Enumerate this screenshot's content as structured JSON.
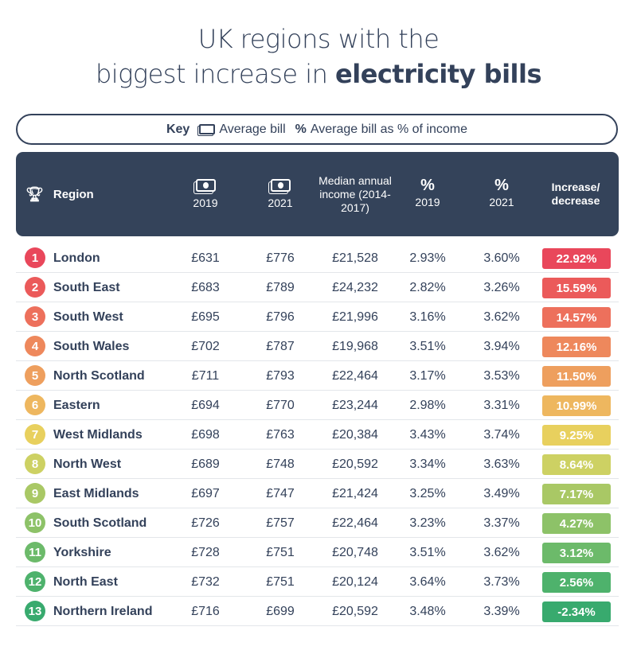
{
  "title": {
    "line1": "UK regions with the",
    "line2_pre": "biggest increase in ",
    "line2_bold": "electricity bills"
  },
  "key": {
    "label": "Key",
    "bill": "Average bill",
    "pct": "Average bill as % of income",
    "bill_icon": "banknote-icon",
    "pct_icon": "percent-icon"
  },
  "header": {
    "region": "Region",
    "bill2019": "2019",
    "bill2021": "2021",
    "income": "Median annual income (2014-2017)",
    "pct2019": "2019",
    "pct2021": "2021",
    "change": "Increase/ decrease",
    "pct_symbol": "%",
    "trophy_icon": "trophy-icon"
  },
  "chart_data": {
    "type": "table",
    "columns": [
      "Rank",
      "Region",
      "Average bill 2019",
      "Average bill 2021",
      "Median annual income (2014-2017)",
      "% 2019",
      "% 2021",
      "Increase/decrease"
    ],
    "rows": [
      {
        "rank": "1",
        "region": "London",
        "b19": "£631",
        "b21": "£776",
        "income": "£21,528",
        "p19": "2.93%",
        "p21": "3.60%",
        "change": "22.92%",
        "color": "#e9475b"
      },
      {
        "rank": "2",
        "region": "South East",
        "b19": "£683",
        "b21": "£789",
        "income": "£24,232",
        "p19": "2.82%",
        "p21": "3.26%",
        "change": "15.59%",
        "color": "#eb5a5a"
      },
      {
        "rank": "3",
        "region": "South West",
        "b19": "£695",
        "b21": "£796",
        "income": "£21,996",
        "p19": "3.16%",
        "p21": "3.62%",
        "change": "14.57%",
        "color": "#ed705c"
      },
      {
        "rank": "4",
        "region": "South Wales",
        "b19": "£702",
        "b21": "£787",
        "income": "£19,968",
        "p19": "3.51%",
        "p21": "3.94%",
        "change": "12.16%",
        "color": "#ee885c"
      },
      {
        "rank": "5",
        "region": "North Scotland",
        "b19": "£711",
        "b21": "£793",
        "income": "£22,464",
        "p19": "3.17%",
        "p21": "3.53%",
        "change": "11.50%",
        "color": "#ee9f5e"
      },
      {
        "rank": "6",
        "region": "Eastern",
        "b19": "£694",
        "b21": "£770",
        "income": "£23,244",
        "p19": "2.98%",
        "p21": "3.31%",
        "change": "10.99%",
        "color": "#eeb75f"
      },
      {
        "rank": "7",
        "region": "West Midlands",
        "b19": "£698",
        "b21": "£763",
        "income": "£20,384",
        "p19": "3.43%",
        "p21": "3.74%",
        "change": "9.25%",
        "color": "#e8d05e"
      },
      {
        "rank": "8",
        "region": "North West",
        "b19": "£689",
        "b21": "£748",
        "income": "£20,592",
        "p19": "3.34%",
        "p21": "3.63%",
        "change": "8.64%",
        "color": "#cdd163"
      },
      {
        "rank": "9",
        "region": "East Midlands",
        "b19": "£697",
        "b21": "£747",
        "income": "£21,424",
        "p19": "3.25%",
        "p21": "3.49%",
        "change": "7.17%",
        "color": "#a9c865"
      },
      {
        "rank": "10",
        "region": "South Scotland",
        "b19": "£726",
        "b21": "£757",
        "income": "£22,464",
        "p19": "3.23%",
        "p21": "3.37%",
        "change": "4.27%",
        "color": "#8dc268"
      },
      {
        "rank": "11",
        "region": "Yorkshire",
        "b19": "£728",
        "b21": "£751",
        "income": "£20,748",
        "p19": "3.51%",
        "p21": "3.62%",
        "change": "3.12%",
        "color": "#6cba6a"
      },
      {
        "rank": "12",
        "region": "North East",
        "b19": "£732",
        "b21": "£751",
        "income": "£20,124",
        "p19": "3.64%",
        "p21": "3.73%",
        "change": "2.56%",
        "color": "#4eb26c"
      },
      {
        "rank": "13",
        "region": "Northern Ireland",
        "b19": "£716",
        "b21": "£699",
        "income": "£20,592",
        "p19": "3.48%",
        "p21": "3.39%",
        "change": "-2.34%",
        "color": "#38aa6e"
      }
    ]
  }
}
